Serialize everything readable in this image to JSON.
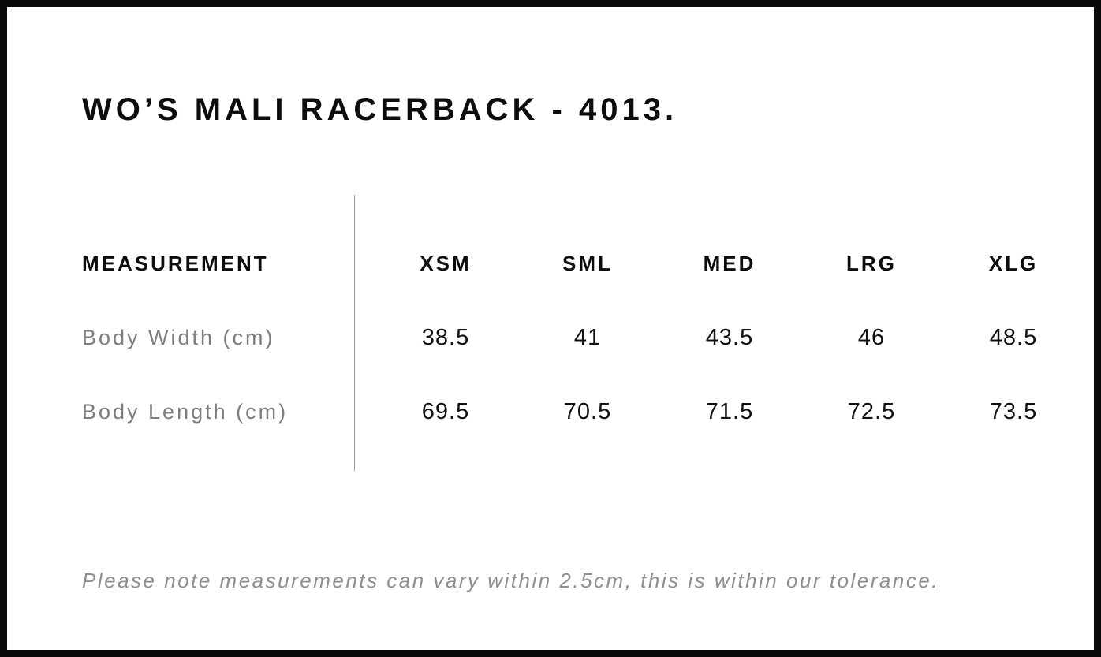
{
  "header": {
    "title": "WO’S MALI RACERBACK - 4013."
  },
  "size_chart": {
    "measurement_header": "MEASUREMENT",
    "size_headers": [
      "XSM",
      "SML",
      "MED",
      "LRG",
      "XLG"
    ],
    "rows": [
      {
        "label": "Body Width (cm)",
        "values": [
          "38.5",
          "41",
          "43.5",
          "46",
          "48.5"
        ]
      },
      {
        "label": "Body Length (cm)",
        "values": [
          "69.5",
          "70.5",
          "71.5",
          "72.5",
          "73.5"
        ]
      }
    ]
  },
  "footer": {
    "note": "Please note measurements can vary within 2.5cm, this is within our tolerance."
  },
  "colors": {
    "frame_border": "#0a0a0a",
    "background": "#ffffff",
    "text_primary": "#0d0d0d",
    "text_muted": "#7d7d7d",
    "note_text": "#8e8e8e",
    "divider": "#9b9b9b"
  },
  "chart_data": {
    "type": "table",
    "title": "WO’S MALI RACERBACK - 4013.",
    "columns": [
      "MEASUREMENT",
      "XSM",
      "SML",
      "MED",
      "LRG",
      "XLG"
    ],
    "rows": [
      [
        "Body Width (cm)",
        38.5,
        41,
        43.5,
        46,
        48.5
      ],
      [
        "Body Length (cm)",
        69.5,
        70.5,
        71.5,
        72.5,
        73.5
      ]
    ],
    "note": "Please note measurements can vary within 2.5cm, this is within our tolerance."
  }
}
